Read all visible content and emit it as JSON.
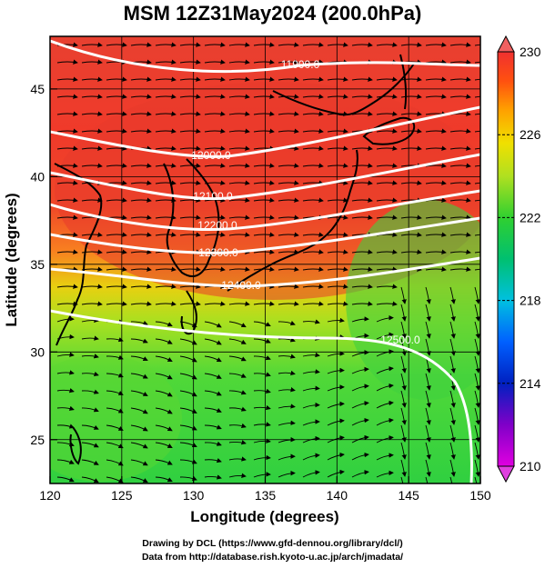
{
  "title": "MSM 12Z31May2024 (200.0hPa)",
  "map": {
    "lon_range": [
      120,
      150
    ],
    "lat_range": [
      22.5,
      48
    ],
    "x_ticks": [
      "120",
      "125",
      "130",
      "135",
      "140",
      "145",
      "150"
    ],
    "y_ticks": [
      "25",
      "30",
      "35",
      "40",
      "45"
    ],
    "x_label": "Longitude (degrees)",
    "y_label": "Latitude  (degrees)",
    "contours": [
      {
        "label": "11900.0"
      },
      {
        "label": "12000.0"
      },
      {
        "label": "12100.0"
      },
      {
        "label": "12200.0"
      },
      {
        "label": "12300.0"
      },
      {
        "label": "12400.0"
      },
      {
        "label": "12500.0"
      }
    ]
  },
  "colorbar": {
    "ticks": [
      "210",
      "214",
      "218",
      "222",
      "226",
      "230"
    ],
    "colors": [
      "#e000e0",
      "#7000d0",
      "#0030d0",
      "#0090ff",
      "#00d0c0",
      "#00c060",
      "#30d030",
      "#a0e020",
      "#e8e000",
      "#ffb000",
      "#ff6000",
      "#f03030"
    ]
  },
  "credits": {
    "line1": "Drawing by DCL (https://www.gfd-dennou.org/library/dcl/)",
    "line2": "Data from http://database.rish.kyoto-u.ac.jp/arch/jmadata/"
  }
}
